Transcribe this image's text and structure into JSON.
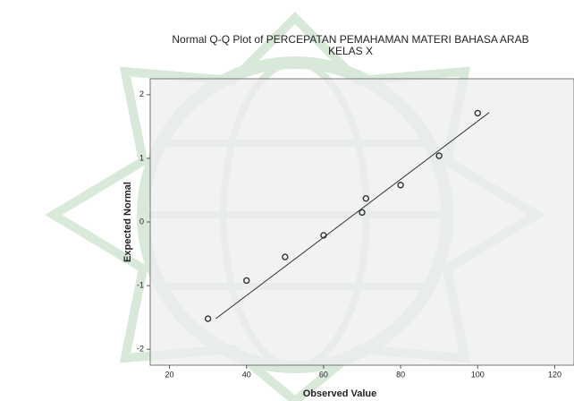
{
  "chart_data": {
    "type": "scatter",
    "title": [
      "Normal Q-Q Plot of PERCEPATAN PEMAHAMAN MATERI BAHASA ARAB",
      "KELAS X"
    ],
    "x_label": "Observed Value",
    "y_label": "Expected Normal",
    "x": [
      30,
      40,
      50,
      60,
      70,
      71,
      80,
      90,
      100
    ],
    "values": [
      -1.52,
      -0.92,
      -0.55,
      -0.21,
      0.15,
      0.37,
      0.58,
      1.04,
      1.71
    ],
    "color": "#333333",
    "reference_line": {
      "x": [
        32,
        103
      ],
      "y": [
        -1.52,
        1.72
      ]
    },
    "xlim": [
      15,
      125
    ],
    "ylim": [
      -2.25,
      2.25
    ],
    "xticks": [
      20,
      40,
      60,
      80,
      100,
      120
    ],
    "yticks": [
      -2,
      -1,
      0,
      1,
      2
    ],
    "grid": false
  }
}
